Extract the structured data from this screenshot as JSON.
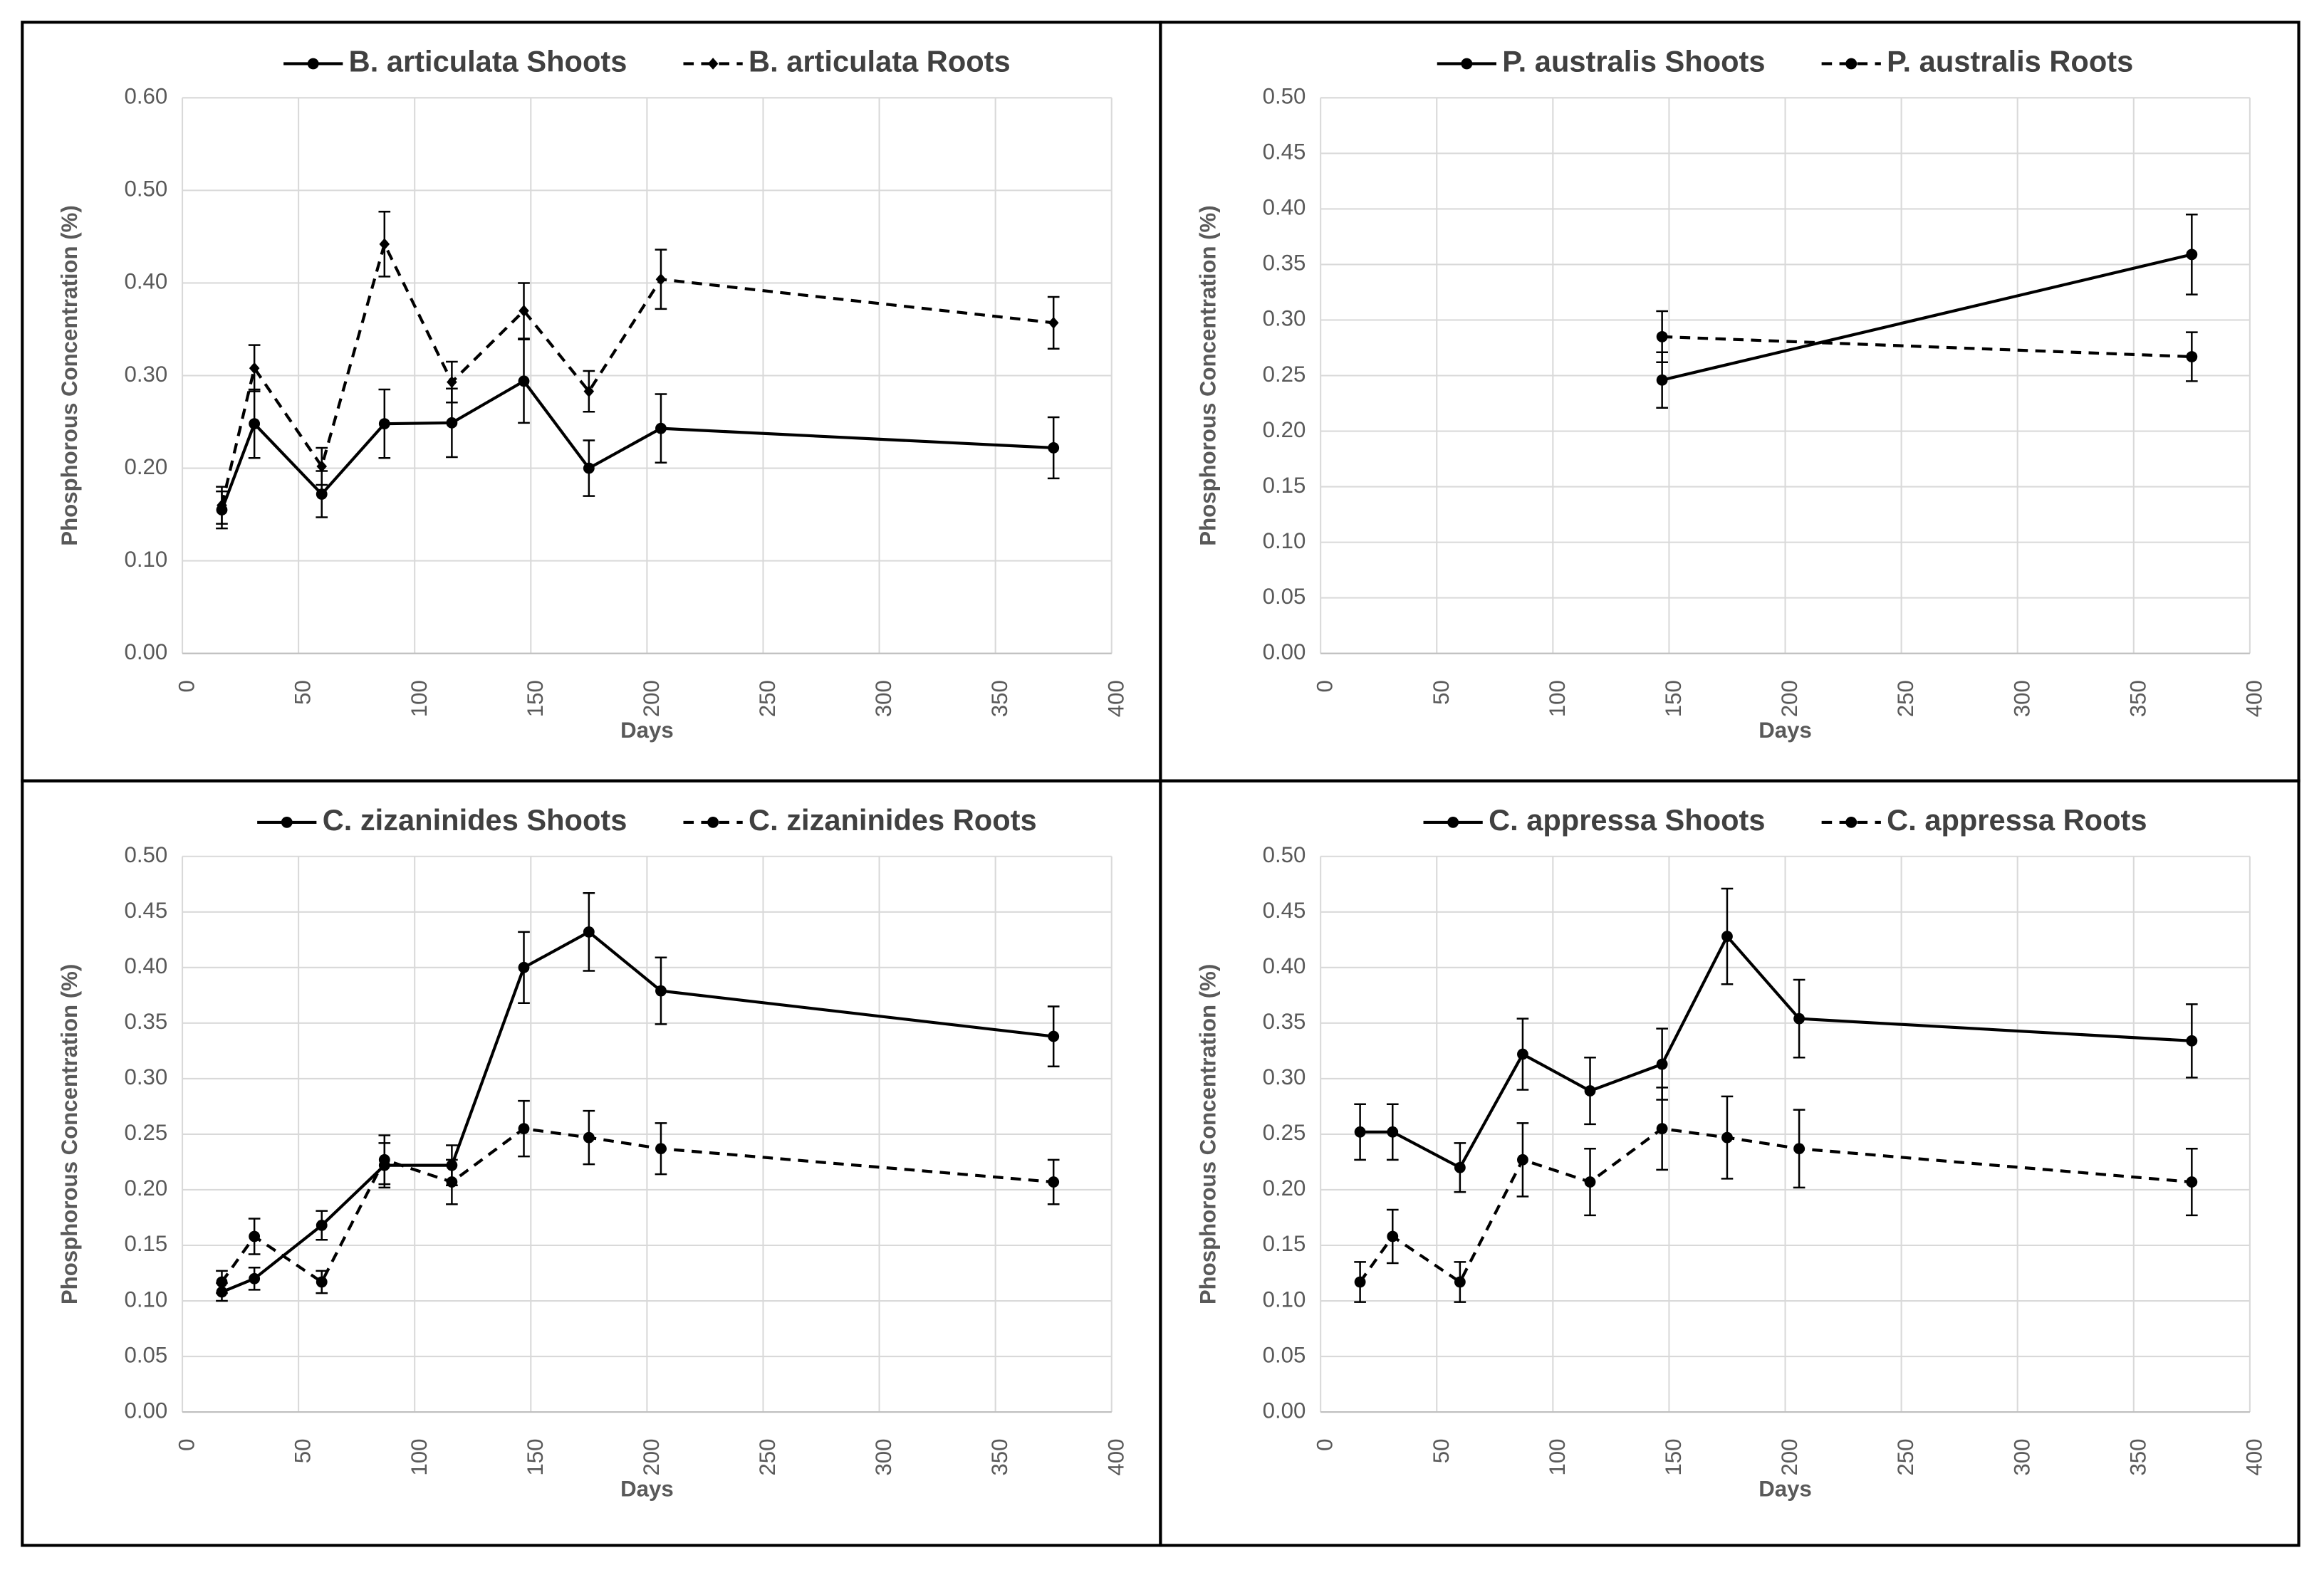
{
  "chart_data": [
    {
      "type": "line",
      "ylabel": "Phosphorous Concentration (%)",
      "xlabel": "Days",
      "x": [
        17,
        31,
        60,
        87,
        116,
        147,
        175,
        206,
        375
      ],
      "xlim": [
        0,
        400
      ],
      "xticks": [
        0,
        50,
        100,
        150,
        200,
        250,
        300,
        350,
        400
      ],
      "ylim": [
        0,
        0.6
      ],
      "yticks": [
        {
          "value": 0,
          "label": "0.00"
        },
        {
          "value": 0.1,
          "label": "0.10"
        },
        {
          "value": 0.2,
          "label": "0.20"
        },
        {
          "value": 0.3,
          "label": "0.30"
        },
        {
          "value": 0.4,
          "label": "0.40"
        },
        {
          "value": 0.5,
          "label": "0.50"
        },
        {
          "value": 0.6,
          "label": "0.60"
        }
      ],
      "grid": true,
      "series": [
        {
          "name": "B. articulata Shoots",
          "color": "#000000",
          "line_style": "solid",
          "marker": "circle",
          "values": [
            0.155,
            0.248,
            0.172,
            0.248,
            0.249,
            0.294,
            0.2,
            0.243,
            0.222
          ],
          "errors": [
            0.02,
            0.037,
            0.025,
            0.037,
            0.037,
            0.045,
            0.03,
            0.037,
            0.033
          ]
        },
        {
          "name": "B. articulata Roots",
          "color": "#000000",
          "line_style": "dashed",
          "marker": "diamond",
          "values": [
            0.16,
            0.308,
            0.202,
            0.442,
            0.293,
            0.37,
            0.283,
            0.404,
            0.357
          ],
          "errors": [
            0.02,
            0.025,
            0.02,
            0.035,
            0.022,
            0.03,
            0.022,
            0.032,
            0.028
          ]
        }
      ]
    },
    {
      "type": "line",
      "ylabel": "Phosphorous Concentration (%)",
      "xlabel": "Days",
      "x": [
        147,
        375
      ],
      "xlim": [
        0,
        400
      ],
      "xticks": [
        0,
        50,
        100,
        150,
        200,
        250,
        300,
        350,
        400
      ],
      "ylim": [
        0,
        0.5
      ],
      "yticks": [
        {
          "value": 0,
          "label": "0.00"
        },
        {
          "value": 0.05,
          "label": "0.05"
        },
        {
          "value": 0.1,
          "label": "0.10"
        },
        {
          "value": 0.15,
          "label": "0.15"
        },
        {
          "value": 0.2,
          "label": "0.20"
        },
        {
          "value": 0.25,
          "label": "0.25"
        },
        {
          "value": 0.3,
          "label": "0.30"
        },
        {
          "value": 0.35,
          "label": "0.35"
        },
        {
          "value": 0.4,
          "label": "0.40"
        },
        {
          "value": 0.45,
          "label": "0.45"
        },
        {
          "value": 0.5,
          "label": "0.50"
        }
      ],
      "grid": true,
      "series": [
        {
          "name": "P. australis Shoots",
          "color": "#000000",
          "line_style": "solid",
          "marker": "circle",
          "values": [
            0.246,
            0.359
          ],
          "errors": [
            0.025,
            0.036
          ]
        },
        {
          "name": "P. australis Roots",
          "color": "#000000",
          "line_style": "dashed",
          "marker": "circle",
          "values": [
            0.285,
            0.267
          ],
          "errors": [
            0.023,
            0.022
          ]
        }
      ]
    },
    {
      "type": "line",
      "ylabel": "Phosphorous Concentration (%)",
      "xlabel": "Days",
      "x": [
        17,
        31,
        60,
        87,
        116,
        147,
        175,
        206,
        375
      ],
      "xlim": [
        0,
        400
      ],
      "xticks": [
        0,
        50,
        100,
        150,
        200,
        250,
        300,
        350,
        400
      ],
      "ylim": [
        0,
        0.5
      ],
      "yticks": [
        {
          "value": 0,
          "label": "0.00"
        },
        {
          "value": 0.05,
          "label": "0.05"
        },
        {
          "value": 0.1,
          "label": "0.10"
        },
        {
          "value": 0.15,
          "label": "0.15"
        },
        {
          "value": 0.2,
          "label": "0.20"
        },
        {
          "value": 0.25,
          "label": "0.25"
        },
        {
          "value": 0.3,
          "label": "0.30"
        },
        {
          "value": 0.35,
          "label": "0.35"
        },
        {
          "value": 0.4,
          "label": "0.40"
        },
        {
          "value": 0.45,
          "label": "0.45"
        },
        {
          "value": 0.5,
          "label": "0.50"
        }
      ],
      "grid": true,
      "series": [
        {
          "name": "C. zizaninides Shoots",
          "color": "#000000",
          "line_style": "solid",
          "marker": "circle",
          "values": [
            0.108,
            0.12,
            0.168,
            0.222,
            0.222,
            0.4,
            0.432,
            0.379,
            0.338
          ],
          "errors": [
            0.008,
            0.01,
            0.013,
            0.02,
            0.018,
            0.032,
            0.035,
            0.03,
            0.027
          ]
        },
        {
          "name": "C. zizaninides Roots",
          "color": "#000000",
          "line_style": "dashed",
          "marker": "circle",
          "values": [
            0.117,
            0.158,
            0.117,
            0.227,
            0.207,
            0.255,
            0.247,
            0.237,
            0.207
          ],
          "errors": [
            0.01,
            0.016,
            0.01,
            0.022,
            0.02,
            0.025,
            0.024,
            0.023,
            0.02
          ]
        }
      ]
    },
    {
      "type": "line",
      "ylabel": "Phosphorous Concentration (%)",
      "xlabel": "Days",
      "x": [
        17,
        31,
        60,
        87,
        116,
        147,
        175,
        206,
        375
      ],
      "xlim": [
        0,
        400
      ],
      "xticks": [
        0,
        50,
        100,
        150,
        200,
        250,
        300,
        350,
        400
      ],
      "ylim": [
        0,
        0.5
      ],
      "yticks": [
        {
          "value": 0,
          "label": "0.00"
        },
        {
          "value": 0.05,
          "label": "0.05"
        },
        {
          "value": 0.1,
          "label": "0.10"
        },
        {
          "value": 0.15,
          "label": "0.15"
        },
        {
          "value": 0.2,
          "label": "0.20"
        },
        {
          "value": 0.25,
          "label": "0.25"
        },
        {
          "value": 0.3,
          "label": "0.30"
        },
        {
          "value": 0.35,
          "label": "0.35"
        },
        {
          "value": 0.4,
          "label": "0.40"
        },
        {
          "value": 0.45,
          "label": "0.45"
        },
        {
          "value": 0.5,
          "label": "0.50"
        }
      ],
      "grid": true,
      "series": [
        {
          "name": "C. appressa Shoots",
          "color": "#000000",
          "line_style": "solid",
          "marker": "circle",
          "values": [
            0.252,
            0.252,
            0.22,
            0.322,
            0.289,
            0.313,
            0.428,
            0.354,
            0.334
          ],
          "errors": [
            0.025,
            0.025,
            0.022,
            0.032,
            0.03,
            0.032,
            0.043,
            0.035,
            0.033
          ]
        },
        {
          "name": "C. appressa Roots",
          "color": "#000000",
          "line_style": "dashed",
          "marker": "circle",
          "values": [
            0.117,
            0.158,
            0.117,
            0.227,
            0.207,
            0.255,
            0.247,
            0.237,
            0.207
          ],
          "errors": [
            0.018,
            0.024,
            0.018,
            0.033,
            0.03,
            0.037,
            0.037,
            0.035,
            0.03
          ]
        }
      ]
    }
  ]
}
